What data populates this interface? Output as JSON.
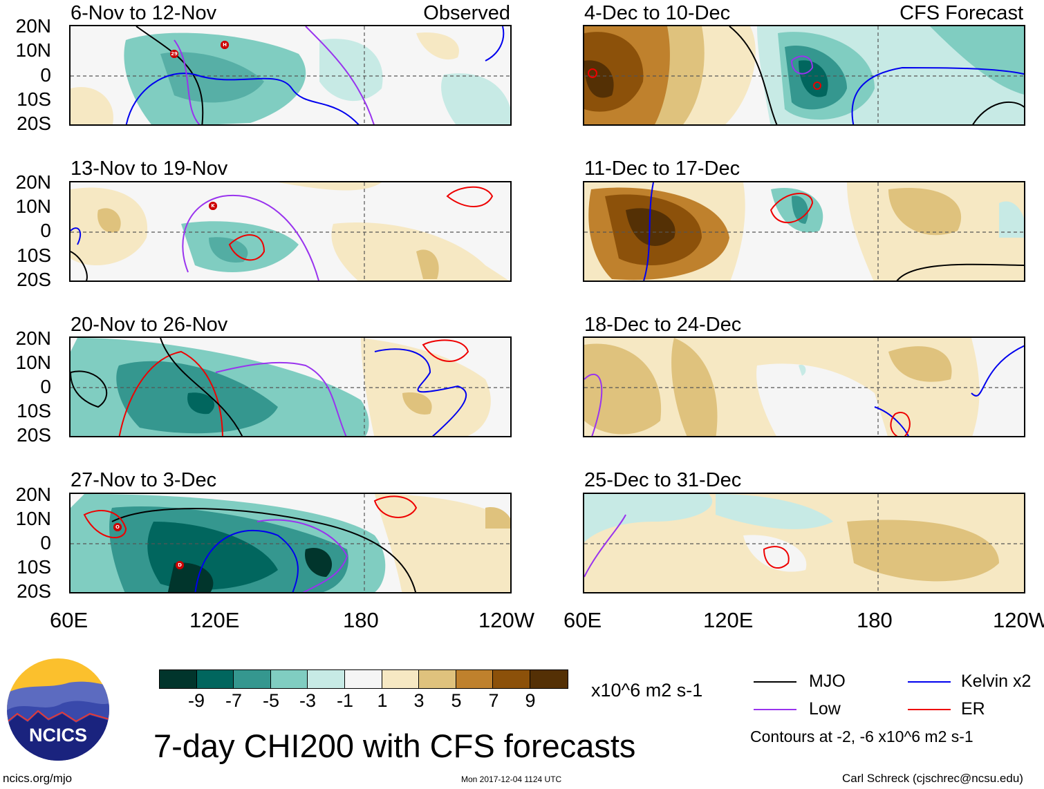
{
  "source": "ncics.org/mjo",
  "main_title": "7-day CHI200 with CFS forecasts",
  "timestamp": "Mon 2017-12-04 1124 UTC",
  "author": "Carl Schreck (cjschrec@ncsu.edu)",
  "logo_text": "NCICS",
  "columns": {
    "observed_tag": "Observed",
    "forecast_tag": "CFS Forecast"
  },
  "axis": {
    "lat_labels": [
      "20N",
      "10N",
      "0",
      "10S",
      "20S"
    ],
    "lon_labels": [
      "60E",
      "120E",
      "180",
      "120W"
    ]
  },
  "panels": [
    {
      "id": "obs-1",
      "title": "6-Nov to 12-Nov"
    },
    {
      "id": "obs-2",
      "title": "13-Nov to 19-Nov"
    },
    {
      "id": "obs-3",
      "title": "20-Nov to 26-Nov"
    },
    {
      "id": "obs-4",
      "title": "27-Nov to 3-Dec"
    },
    {
      "id": "fc-1",
      "title": "4-Dec to 10-Dec"
    },
    {
      "id": "fc-2",
      "title": "11-Dec to 17-Dec"
    },
    {
      "id": "fc-3",
      "title": "18-Dec to 24-Dec"
    },
    {
      "id": "fc-4",
      "title": "25-Dec to 31-Dec"
    }
  ],
  "storm_markers": [
    "29",
    "H",
    "K",
    "O",
    "D"
  ],
  "colorbar": {
    "colors": [
      "#01352c",
      "#01665e",
      "#35978f",
      "#80cdc1",
      "#c7eae5",
      "#f5f5f5",
      "#f6e8c3",
      "#dfc27d",
      "#bf812d",
      "#8c510a",
      "#543005"
    ],
    "ticks": [
      "-9",
      "-7",
      "-5",
      "-3",
      "-1",
      "1",
      "3",
      "5",
      "7",
      "9"
    ],
    "units": "x10^6 m2 s-1"
  },
  "legend": {
    "items": [
      {
        "label": "MJO",
        "color": "#000000"
      },
      {
        "label": "Kelvin x2",
        "color": "#0000ee"
      },
      {
        "label": "Low",
        "color": "#9933ee"
      },
      {
        "label": "ER",
        "color": "#ee0000"
      }
    ],
    "contour_note": "Contours at -2, -6 x10^6 m2 s-1"
  }
}
